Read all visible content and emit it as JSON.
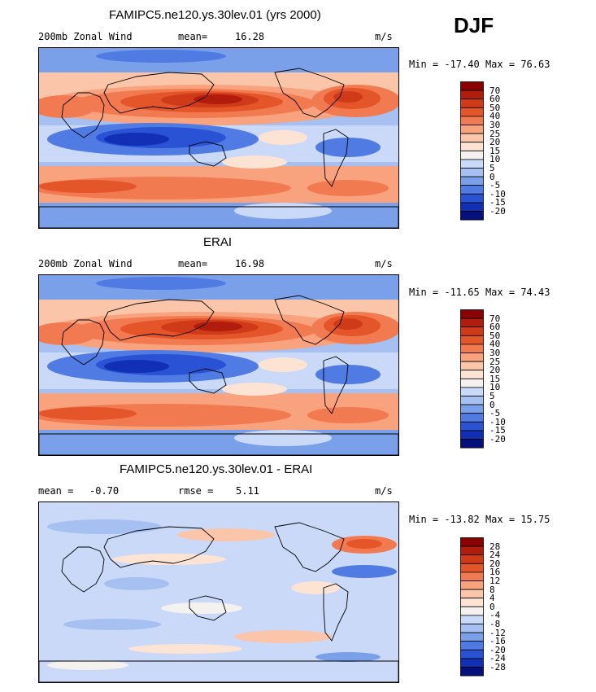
{
  "season": "DJF",
  "chart_data": [
    {
      "type": "heatmap",
      "title": "FAMIPC5.ne120.ys.30lev.01 (yrs 2000)",
      "variable_label": "200mb Zonal Wind",
      "stat1_label": "mean=",
      "stat1_value": "16.28",
      "units": "m/s",
      "min_label": "Min =",
      "min_value": "-17.40",
      "max_label": "Max =",
      "max_value": "76.63",
      "colorbar_levels": [
        "70",
        "60",
        "50",
        "40",
        "30",
        "25",
        "20",
        "15",
        "10",
        "5",
        "0",
        "-5",
        "-10",
        "-15",
        "-20"
      ],
      "colorbar_colors": [
        "#8b0000",
        "#b11c0d",
        "#cf3a18",
        "#e4552a",
        "#f27a50",
        "#f8a27e",
        "#fbc5a9",
        "#fde3d3",
        "#f4f1ee",
        "#c9d9f7",
        "#a5c0f1",
        "#7aa0ea",
        "#4f7be3",
        "#2a52d4",
        "#1230b5",
        "#06107a"
      ]
    },
    {
      "type": "heatmap",
      "title": "ERAI",
      "variable_label": "200mb Zonal Wind",
      "stat1_label": "mean=",
      "stat1_value": "16.98",
      "units": "m/s",
      "min_label": "Min =",
      "min_value": "-11.65",
      "max_label": "Max =",
      "max_value": "74.43",
      "colorbar_levels": [
        "70",
        "60",
        "50",
        "40",
        "30",
        "25",
        "20",
        "15",
        "10",
        "5",
        "0",
        "-5",
        "-10",
        "-15",
        "-20"
      ],
      "colorbar_colors": [
        "#8b0000",
        "#b11c0d",
        "#cf3a18",
        "#e4552a",
        "#f27a50",
        "#f8a27e",
        "#fbc5a9",
        "#fde3d3",
        "#f4f1ee",
        "#c9d9f7",
        "#a5c0f1",
        "#7aa0ea",
        "#4f7be3",
        "#2a52d4",
        "#1230b5",
        "#06107a"
      ]
    },
    {
      "type": "heatmap",
      "title": "FAMIPC5.ne120.ys.30lev.01 - ERAI",
      "stat1_label": "mean =",
      "stat1_value": "-0.70",
      "stat2_label": "rmse =",
      "stat2_value": "5.11",
      "units": "m/s",
      "min_label": "Min =",
      "min_value": "-13.82",
      "max_label": "Max =",
      "max_value": "15.75",
      "colorbar_levels": [
        "28",
        "24",
        "20",
        "16",
        "12",
        "8",
        "4",
        "0",
        "-4",
        "-8",
        "-12",
        "-16",
        "-20",
        "-24",
        "-28"
      ],
      "colorbar_colors": [
        "#8b0000",
        "#b11c0d",
        "#cf3a18",
        "#e4552a",
        "#f27a50",
        "#f8a27e",
        "#fbc5a9",
        "#fde3d3",
        "#f4f1ee",
        "#c9d9f7",
        "#a5c0f1",
        "#7aa0ea",
        "#4f7be3",
        "#2a52d4",
        "#1230b5",
        "#06107a"
      ]
    }
  ]
}
